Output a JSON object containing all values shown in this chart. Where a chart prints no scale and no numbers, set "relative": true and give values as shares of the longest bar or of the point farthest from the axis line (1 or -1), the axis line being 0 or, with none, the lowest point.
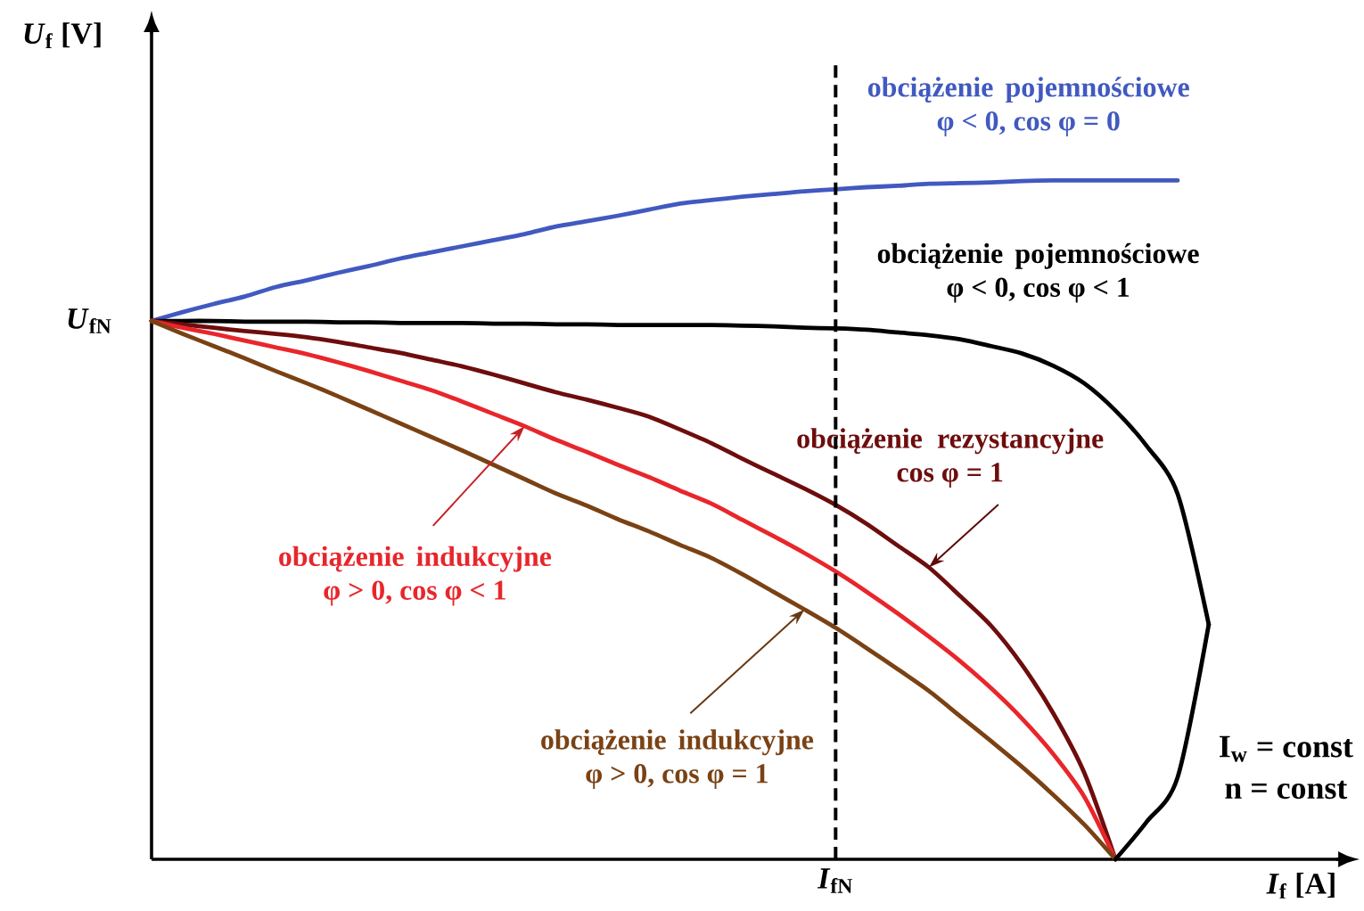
{
  "chart_data": {
    "type": "line",
    "relative": true,
    "xlabel": "*I*$_{f}$ [A]",
    "ylabel": "*U*$_{f}$ [V]",
    "categories": [
      null,
      null,
      null,
      null,
      null,
      null,
      null,
      null,
      null,
      null,
      null,
      null,
      null,
      null,
      null,
      null,
      null,
      null,
      null,
      null,
      null,
      null,
      null,
      null,
      null,
      null,
      null,
      null,
      null,
      null,
      null,
      null,
      null,
      null,
      null
    ],
    "marker": "none",
    "series": [
      {
        "name": "obciążenie pojemnościowe φ < 0, cos φ = 0",
        "color": "#4159c0",
        "values": [
          0.793,
          0.806,
          0.818,
          0.829,
          0.843,
          0.853,
          0.864,
          0.874,
          0.885,
          0.894,
          0.903,
          0.912,
          0.921,
          0.932,
          0.94,
          0.948,
          0.957,
          0.966,
          0.971,
          0.976,
          0.98,
          0.984,
          0.987,
          0.99,
          0.992,
          0.995,
          0.996,
          0.997,
          0.999,
          1.0,
          1.0,
          1.0,
          1.0,
          1.0,
          null
        ]
      },
      {
        "name": "obciążenie pojemnościowe φ < 0, cos φ < 1",
        "color": "#000000",
        "values": [
          0.793,
          0.793,
          0.793,
          0.792,
          0.792,
          0.792,
          0.791,
          0.791,
          0.79,
          0.79,
          0.79,
          0.789,
          0.789,
          0.788,
          0.788,
          0.787,
          0.787,
          0.787,
          0.787,
          0.786,
          0.785,
          0.783,
          0.782,
          0.78,
          0.776,
          0.772,
          0.766,
          0.756,
          0.745,
          0.727,
          0.701,
          0.661,
          0.609,
          0.538,
          0.346
        ]
      },
      {
        "name": "obciążenie rezystancyjne cos φ = 1",
        "color": "#6e0d0d",
        "values": [
          0.793,
          0.788,
          0.783,
          0.778,
          0.774,
          0.769,
          0.762,
          0.754,
          0.746,
          0.736,
          0.726,
          0.714,
          0.701,
          0.688,
          0.677,
          0.665,
          0.652,
          0.633,
          0.613,
          0.59,
          0.568,
          0.546,
          0.522,
          0.494,
          0.462,
          0.43,
          0.388,
          0.344,
          0.286,
          0.215,
          0.127,
          0,
          null,
          null,
          null
        ]
      },
      {
        "name": "obciążenie indukcyjne φ > 0, cos φ < 1",
        "color": "#e8262b",
        "values": [
          0.793,
          0.783,
          0.774,
          0.764,
          0.754,
          0.744,
          0.732,
          0.719,
          0.705,
          0.691,
          0.674,
          0.656,
          0.638,
          0.618,
          0.6,
          0.581,
          0.563,
          0.543,
          0.524,
          0.5,
          0.476,
          0.451,
          0.424,
          0.394,
          0.362,
          0.328,
          0.292,
          0.252,
          0.207,
          0.155,
          0.092,
          0,
          null,
          null,
          null
        ]
      },
      {
        "name": "obciążenie indukcyjne φ > 0, cos φ = 1",
        "color": "#7a4214",
        "values": [
          0.793,
          0.774,
          0.756,
          0.738,
          0.719,
          0.701,
          0.682,
          0.662,
          0.642,
          0.622,
          0.602,
          0.581,
          0.56,
          0.539,
          0.521,
          0.501,
          0.483,
          0.463,
          0.444,
          0.42,
          0.394,
          0.368,
          0.341,
          0.311,
          0.28,
          0.248,
          0.211,
          0.174,
          0.136,
          0.095,
          0.051,
          0,
          null,
          null,
          null
        ]
      },
      {
        "color": "#000000",
        "values": [
          null,
          null,
          null,
          null,
          null,
          null,
          null,
          null,
          null,
          null,
          null,
          null,
          null,
          null,
          null,
          null,
          null,
          null,
          null,
          null,
          null,
          null,
          null,
          null,
          null,
          null,
          null,
          null,
          null,
          null,
          null,
          0,
          0.055,
          0.121,
          0.346
        ]
      }
    ],
    "annotations": [
      "*U*$_{fN}$",
      "*I*$_{fN}$",
      "I$_{w}$ = const",
      "n = const"
    ]
  }
}
